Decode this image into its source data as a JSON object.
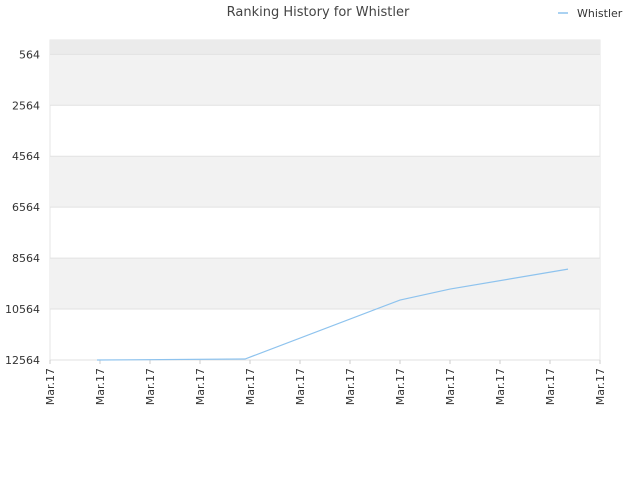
{
  "chart_data": {
    "type": "line",
    "title": "Ranking History for Whistler",
    "x": [
      0.94,
      3.9,
      7,
      8,
      10.36
    ],
    "series": [
      {
        "name": "Whistler",
        "color": "#8ec3ee",
        "values": [
          12564,
          12525,
          10211,
          9780,
          8995
        ]
      }
    ],
    "xlim": [
      0,
      11
    ],
    "xticks": [
      {
        "value": 0,
        "label": "Mar.17"
      },
      {
        "value": 1,
        "label": "Mar.17"
      },
      {
        "value": 2,
        "label": "Mar.17"
      },
      {
        "value": 3,
        "label": "Mar.17"
      },
      {
        "value": 4,
        "label": "Mar.17"
      },
      {
        "value": 5,
        "label": "Mar.17"
      },
      {
        "value": 6,
        "label": "Mar.17"
      },
      {
        "value": 7,
        "label": "Mar.17"
      },
      {
        "value": 8,
        "label": "Mar.17"
      },
      {
        "value": 9,
        "label": "Mar.17"
      },
      {
        "value": 10,
        "label": "Mar.17"
      },
      {
        "value": 11,
        "label": "Mar.17"
      }
    ],
    "ylim": [
      12564,
      0
    ],
    "yticks": [
      564,
      2564,
      4564,
      6564,
      8564,
      10564,
      12564
    ],
    "grid": true,
    "legend": "top-right"
  }
}
